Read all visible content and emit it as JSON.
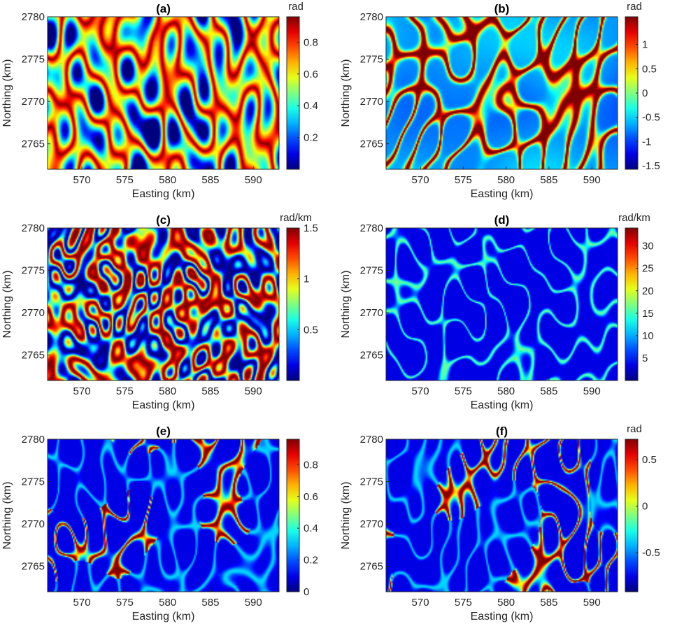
{
  "chart_data": [
    {
      "id": "a",
      "type": "heatmap",
      "title": "(a)",
      "xlabel": "Easting (km)",
      "ylabel": "Northing (km)",
      "xlim": [
        566,
        593
      ],
      "ylim": [
        2762,
        2780
      ],
      "xticks": [
        570,
        575,
        580,
        585,
        590
      ],
      "yticks": [
        2765,
        2770,
        2775,
        2780
      ],
      "colorbar": {
        "label": "rad",
        "range": [
          0,
          0.96
        ],
        "ticks": [
          0.2,
          0.4,
          0.6,
          0.8
        ],
        "tick_labels": [
          "0.2",
          "0.4",
          "0.6",
          "0.8"
        ]
      },
      "colormap": "jet",
      "pattern": "dense"
    },
    {
      "id": "b",
      "type": "heatmap",
      "title": "(b)",
      "xlabel": "Easting (km)",
      "ylabel": "Northing (km)",
      "xlim": [
        566,
        593
      ],
      "ylim": [
        2762,
        2780
      ],
      "xticks": [
        570,
        575,
        580,
        585,
        590
      ],
      "yticks": [
        2765,
        2770,
        2775,
        2780
      ],
      "colorbar": {
        "label": "rad",
        "range": [
          -1.57,
          1.57
        ],
        "ticks": [
          -1.5,
          -1,
          -0.5,
          0,
          0.5,
          1
        ],
        "tick_labels": [
          "-1.5",
          "-1",
          "-0.5",
          "0",
          "0.5",
          "1"
        ]
      },
      "colormap": "jet",
      "pattern": "filaments"
    },
    {
      "id": "c",
      "type": "heatmap",
      "title": "(c)",
      "xlabel": "Easting (km)",
      "ylabel": "Northing (km)",
      "xlim": [
        566,
        593
      ],
      "ylim": [
        2762,
        2780
      ],
      "xticks": [
        570,
        575,
        580,
        585,
        590
      ],
      "yticks": [
        2765,
        2770,
        2775,
        2780
      ],
      "colorbar": {
        "label": "rad/km",
        "range": [
          0,
          1.5
        ],
        "ticks": [
          0.5,
          1,
          1.5
        ],
        "tick_labels": [
          "0.5",
          "1",
          "1.5"
        ]
      },
      "colormap": "jet",
      "pattern": "fine"
    },
    {
      "id": "d",
      "type": "heatmap",
      "title": "(d)",
      "xlabel": "Easting (km)",
      "ylabel": "Northing (km)",
      "xlim": [
        566,
        593
      ],
      "ylim": [
        2762,
        2780
      ],
      "xticks": [
        570,
        575,
        580,
        585,
        590
      ],
      "yticks": [
        2765,
        2770,
        2775,
        2780
      ],
      "colorbar": {
        "label": "rad/km",
        "range": [
          0,
          34
        ],
        "ticks": [
          5,
          10,
          15,
          20,
          25,
          30
        ],
        "tick_labels": [
          "5",
          "10",
          "15",
          "20",
          "25",
          "30"
        ]
      },
      "colormap": "jet",
      "pattern": "contours"
    },
    {
      "id": "e",
      "type": "heatmap",
      "title": "(e)",
      "xlabel": "Easting (km)",
      "ylabel": "Northing (km)",
      "xlim": [
        566,
        593
      ],
      "ylim": [
        2762,
        2780
      ],
      "xticks": [
        570,
        575,
        580,
        585,
        590
      ],
      "yticks": [
        2765,
        2770,
        2775,
        2780
      ],
      "colorbar": {
        "label": "",
        "range": [
          0,
          0.96
        ],
        "ticks": [
          0,
          0.2,
          0.4,
          0.6,
          0.8
        ],
        "tick_labels": [
          "0",
          "0.2",
          "0.4",
          "0.6",
          "0.8"
        ]
      },
      "colormap": "jet",
      "pattern": "sparse"
    },
    {
      "id": "f",
      "type": "heatmap",
      "title": "(f)",
      "xlabel": "Easting (km)",
      "ylabel": "Northing (km)",
      "xlim": [
        566,
        593
      ],
      "ylim": [
        2762,
        2780
      ],
      "xticks": [
        570,
        575,
        580,
        585,
        590
      ],
      "yticks": [
        2765,
        2770,
        2775,
        2780
      ],
      "colorbar": {
        "label": "rad",
        "range": [
          -0.92,
          0.72
        ],
        "ticks": [
          -0.5,
          0,
          0.5
        ],
        "tick_labels": [
          "-0.5",
          "0",
          "0.5"
        ]
      },
      "colormap": "jet",
      "pattern": "sparse"
    }
  ]
}
